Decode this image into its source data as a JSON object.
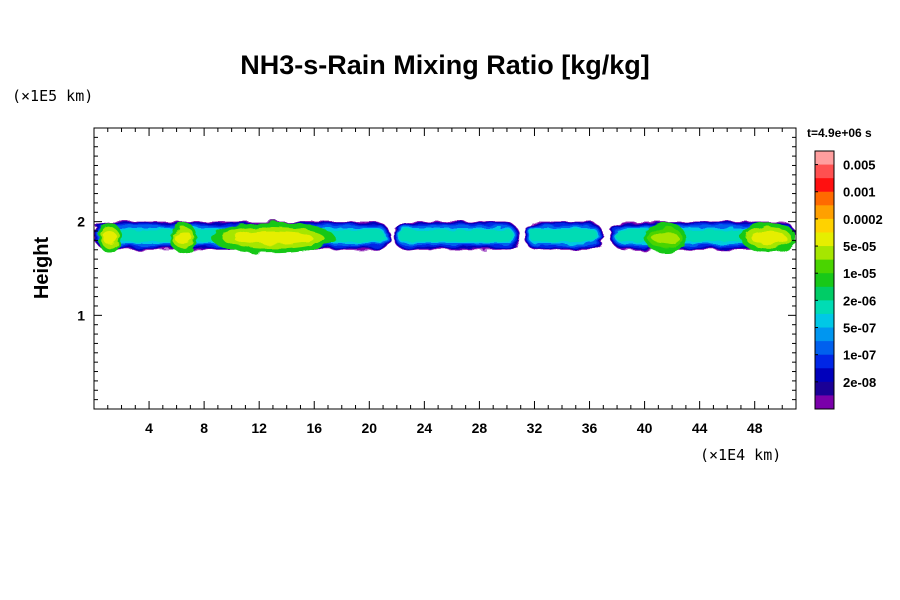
{
  "chart_data": {
    "type": "heatmap",
    "title": "NH3-s-Rain Mixing Ratio [kg/kg]",
    "xlabel": "",
    "ylabel": "Height",
    "x_unit": "(×1E4 km)",
    "y_unit": "(×1E5 km)",
    "time": "t=4.9e+06 s",
    "xlim": [
      0,
      51
    ],
    "ylim": [
      0,
      3
    ],
    "x_ticks": [
      4,
      8,
      12,
      16,
      20,
      24,
      28,
      32,
      36,
      40,
      44,
      48
    ],
    "x_tick_labels": [
      "4",
      "8",
      "12",
      "16",
      "20",
      "24",
      "28",
      "32",
      "36",
      "40",
      "44",
      "48"
    ],
    "y_ticks": [
      1,
      2
    ],
    "y_tick_labels": [
      "1",
      "2"
    ],
    "colorbar": {
      "labels": [
        "0.005",
        "0.001",
        "0.0002",
        "5e-05",
        "1e-05",
        "2e-06",
        "5e-07",
        "1e-07",
        "2e-08"
      ],
      "colors_top_to_bottom": [
        "#ff9e9e",
        "#ff5050",
        "#ff1010",
        "#ff6a00",
        "#ffa000",
        "#ffd200",
        "#e6ee00",
        "#a6e600",
        "#4ad400",
        "#18c818",
        "#00cc66",
        "#00dcb4",
        "#00c8e6",
        "#0096f0",
        "#0060ee",
        "#0026e6",
        "#0000bb",
        "#1a0096",
        "#7a00aa"
      ]
    },
    "cloud_band": {
      "y_bottom": 1.7,
      "y_top": 2.0,
      "segments": [
        {
          "x_start": 0.0,
          "x_end": 21.5
        },
        {
          "x_start": 21.7,
          "x_end": 30.9
        },
        {
          "x_start": 31.2,
          "x_end": 37.0
        },
        {
          "x_start": 37.5,
          "x_end": 51.0
        }
      ],
      "peak_regions": [
        {
          "x_start": 0.3,
          "x_end": 2.0,
          "level": "5e-05"
        },
        {
          "x_start": 5.5,
          "x_end": 7.5,
          "level": "5e-05"
        },
        {
          "x_start": 8.5,
          "x_end": 17.5,
          "level": "5e-05"
        },
        {
          "x_start": 40.0,
          "x_end": 43.0,
          "level": "1e-05"
        },
        {
          "x_start": 47.0,
          "x_end": 51.0,
          "level": "5e-05"
        }
      ]
    }
  }
}
